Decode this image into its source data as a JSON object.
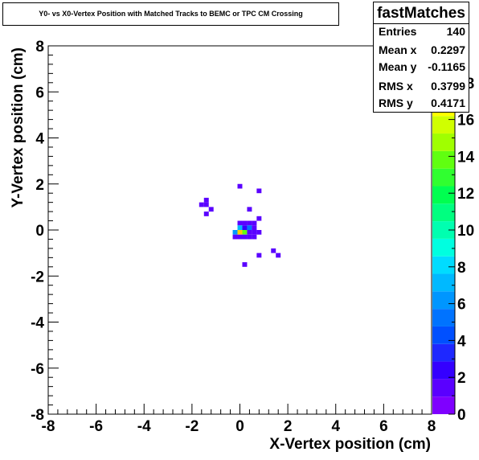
{
  "chart_data": {
    "type": "heatmap",
    "title": "Y0- vs X0-Vertex Position with Matched Tracks to BEMC or TPC CM Crossing",
    "xlabel": "X-Vertex position (cm)",
    "ylabel": "Y-Vertex position (cm)",
    "xlim": [
      -8,
      8
    ],
    "ylim": [
      -8,
      8
    ],
    "x_ticks": [
      "-8",
      "-6",
      "-4",
      "-2",
      "0",
      "2",
      "4",
      "6",
      "8"
    ],
    "y_ticks": [
      "-8",
      "-6",
      "-4",
      "-2",
      "0",
      "2",
      "4",
      "6",
      "8"
    ],
    "z_range": [
      0,
      20
    ],
    "z_ticks": [
      "0",
      "2",
      "4",
      "6",
      "8",
      "10",
      "12",
      "14",
      "16",
      "18"
    ],
    "bin_size": 0.2,
    "cells": [
      {
        "x": 0.0,
        "y": 1.9,
        "z": 1
      },
      {
        "x": 0.8,
        "y": 1.7,
        "z": 1
      },
      {
        "x": -1.4,
        "y": 1.3,
        "z": 1
      },
      {
        "x": -1.6,
        "y": 1.1,
        "z": 1
      },
      {
        "x": -1.4,
        "y": 1.1,
        "z": 1
      },
      {
        "x": -1.2,
        "y": 0.9,
        "z": 1
      },
      {
        "x": 0.4,
        "y": 0.9,
        "z": 1
      },
      {
        "x": -1.4,
        "y": 0.7,
        "z": 1
      },
      {
        "x": 0.8,
        "y": 0.5,
        "z": 1
      },
      {
        "x": 0.0,
        "y": 0.3,
        "z": 1
      },
      {
        "x": 0.2,
        "y": 0.3,
        "z": 1
      },
      {
        "x": 0.4,
        "y": 0.3,
        "z": 1
      },
      {
        "x": 0.6,
        "y": 0.3,
        "z": 1
      },
      {
        "x": 0.0,
        "y": 0.1,
        "z": 7
      },
      {
        "x": 0.2,
        "y": 0.1,
        "z": 2
      },
      {
        "x": 0.4,
        "y": 0.1,
        "z": 5
      },
      {
        "x": 0.6,
        "y": 0.1,
        "z": 1
      },
      {
        "x": -0.2,
        "y": -0.1,
        "z": 6
      },
      {
        "x": 0.0,
        "y": -0.1,
        "z": 18
      },
      {
        "x": 0.2,
        "y": -0.1,
        "z": 14
      },
      {
        "x": 0.4,
        "y": -0.1,
        "z": 1
      },
      {
        "x": 0.6,
        "y": -0.1,
        "z": 1
      },
      {
        "x": 0.8,
        "y": -0.1,
        "z": 1
      },
      {
        "x": -0.2,
        "y": -0.3,
        "z": 1
      },
      {
        "x": 0.0,
        "y": -0.3,
        "z": 1
      },
      {
        "x": 0.2,
        "y": -0.3,
        "z": 1
      },
      {
        "x": 0.4,
        "y": -0.3,
        "z": 1
      },
      {
        "x": 0.6,
        "y": -0.3,
        "z": 1
      },
      {
        "x": 1.4,
        "y": -0.9,
        "z": 1
      },
      {
        "x": 0.8,
        "y": -1.1,
        "z": 1
      },
      {
        "x": 1.6,
        "y": -1.1,
        "z": 1
      },
      {
        "x": 0.2,
        "y": -1.5,
        "z": 1
      }
    ],
    "palette": [
      "#7f00ff",
      "#5a00ff",
      "#3400ff",
      "#1e28ff",
      "#0050ff",
      "#0073ff",
      "#0096ff",
      "#00b9ff",
      "#00dcff",
      "#00ffe0",
      "#00ffb0",
      "#00ff80",
      "#00ff50",
      "#30ff30",
      "#60ff10",
      "#a0ff00",
      "#d0ff00",
      "#ffff00",
      "#ffcc00",
      "#ff9900",
      "#ff3300"
    ]
  },
  "stats": {
    "title": "fastMatches",
    "rows": [
      {
        "label": "Entries",
        "value": "140"
      },
      {
        "label": "Mean x",
        "value": "0.2297"
      },
      {
        "label": "Mean y",
        "value": "-0.1165"
      },
      {
        "label": "RMS x",
        "value": "0.3799"
      },
      {
        "label": "RMS y",
        "value": "0.4171"
      }
    ]
  }
}
